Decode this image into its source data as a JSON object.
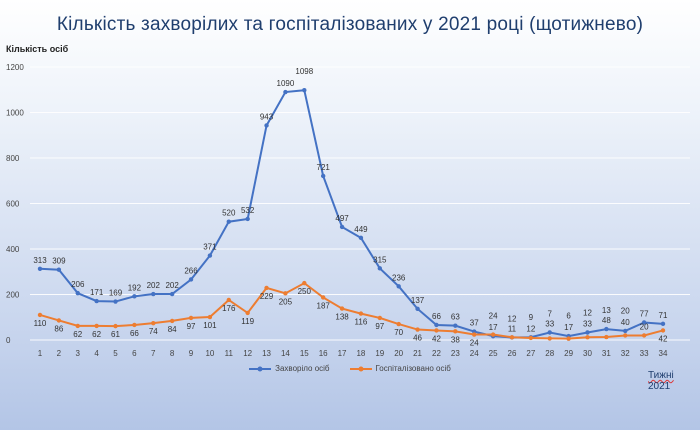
{
  "chart_data": {
    "type": "line",
    "title": "Кількість захворілих та госпіталізованих у 2021 році (щотижнево)",
    "ylabel": "Кількість осіб",
    "xlabel": "Тижні 2021",
    "xlabel_parts": [
      "Тижні",
      "2021"
    ],
    "ylim": [
      0,
      1200
    ],
    "yticks": [
      0,
      200,
      400,
      600,
      800,
      1000,
      1200
    ],
    "x": [
      1,
      2,
      3,
      4,
      5,
      6,
      7,
      8,
      9,
      10,
      11,
      12,
      13,
      14,
      15,
      16,
      17,
      18,
      19,
      20,
      21,
      22,
      23,
      24,
      25,
      26,
      27,
      28,
      29,
      30,
      31,
      32,
      33,
      34
    ],
    "grid": true,
    "legend": "bottom",
    "series": [
      {
        "name": "Захворіло осіб",
        "color": "#4472c4",
        "values": [
          313,
          309,
          206,
          171,
          169,
          192,
          202,
          202,
          266,
          371,
          520,
          532,
          943,
          1090,
          1098,
          721,
          497,
          449,
          315,
          236,
          137,
          66,
          63,
          37,
          17,
          11,
          12,
          33,
          17,
          33,
          48,
          40,
          77,
          71
        ]
      },
      {
        "name": "Госпіталізовано осіб",
        "color": "#ed7d31",
        "values": [
          110,
          86,
          62,
          62,
          61,
          66,
          74,
          84,
          97,
          101,
          176,
          119,
          229,
          205,
          250,
          187,
          138,
          116,
          97,
          70,
          46,
          42,
          38,
          24,
          24,
          12,
          9,
          7,
          6,
          12,
          13,
          20,
          20,
          42
        ]
      }
    ]
  }
}
